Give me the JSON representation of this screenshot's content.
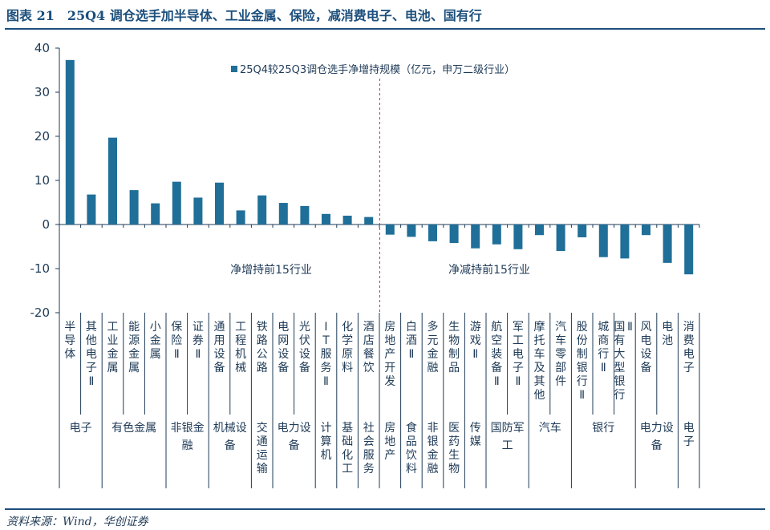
{
  "header": {
    "title": "图表 21　25Q4 调仓选手加半导体、工业金属、保险，减消费电子、电池、国有行"
  },
  "footer": {
    "source": "资料来源：Wind，华创证券"
  },
  "colors": {
    "bar": "#1f6f99",
    "title": "#1c4f7c",
    "divider": "#e03030"
  },
  "chart_data": {
    "type": "bar",
    "title": "",
    "legend": "25Q4较25Q3调仓选手净增持规模（亿元，申万二级行业）",
    "legend_position": "top-center",
    "grid": false,
    "ylim": [
      -20,
      40
    ],
    "yticks": [
      "40",
      "30",
      "20",
      "10",
      "0",
      "-10",
      "-20"
    ],
    "categories": [
      "半导体",
      "其他电子Ⅱ",
      "工业金属",
      "能源金属",
      "小金属",
      "保险Ⅱ",
      "证券Ⅱ",
      "通用设备",
      "工程机械",
      "铁路公路",
      "电网设备",
      "光伏设备",
      "IT服务Ⅱ",
      "化学原料",
      "酒店餐饮",
      "房地产开发",
      "白酒Ⅱ",
      "多元金融",
      "生物制品",
      "游戏Ⅱ",
      "航空装备Ⅱ",
      "军工电子Ⅱ",
      "摩托车及其他",
      "汽车零部件",
      "股份制银行Ⅱ",
      "城商行Ⅱ",
      "国有大型银行Ⅱ",
      "风电设备",
      "电池",
      "消费电子"
    ],
    "values": [
      37.3,
      6.8,
      19.7,
      7.8,
      4.8,
      9.7,
      6.1,
      9.5,
      3.2,
      6.6,
      4.9,
      4.2,
      2.4,
      2.0,
      1.7,
      -2.3,
      -2.8,
      -3.8,
      -4.2,
      -5.4,
      -4.5,
      -5.6,
      -2.4,
      -6.0,
      -2.9,
      -7.4,
      -7.7,
      -2.4,
      -8.7,
      -11.3
    ],
    "groups": [
      {
        "label": "电子",
        "count": 2
      },
      {
        "label": "有色金属",
        "count": 3
      },
      {
        "label": "非银金融",
        "count": 2
      },
      {
        "label": "机械设备",
        "count": 2
      },
      {
        "label": "交通运输",
        "count": 1
      },
      {
        "label": "电力设备",
        "count": 2
      },
      {
        "label": "计算机",
        "count": 1
      },
      {
        "label": "基础化工",
        "count": 1
      },
      {
        "label": "社会服务",
        "count": 1
      },
      {
        "label": "房地产",
        "count": 1
      },
      {
        "label": "食品饮料",
        "count": 1
      },
      {
        "label": "非银金融",
        "count": 1
      },
      {
        "label": "医药生物",
        "count": 1
      },
      {
        "label": "传媒",
        "count": 1
      },
      {
        "label": "国防军工",
        "count": 2
      },
      {
        "label": "汽车",
        "count": 2
      },
      {
        "label": "银行",
        "count": 3
      },
      {
        "label": "电力设备",
        "count": 2
      },
      {
        "label": "电子",
        "count": 1
      }
    ],
    "annotations": {
      "left": "净增持前15行业",
      "right": "净减持前15行业"
    }
  }
}
